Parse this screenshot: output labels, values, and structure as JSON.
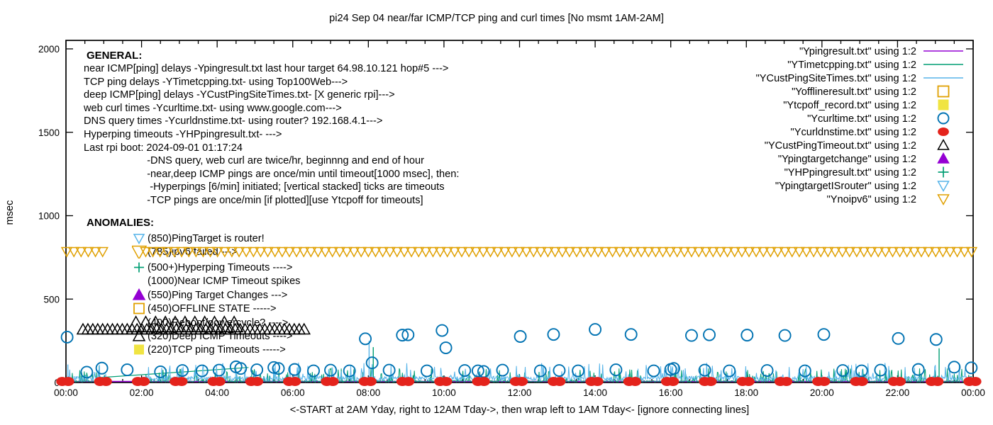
{
  "title": "pi24 Sep 04  near/far ICMP/TCP ping and curl times [No msmt 1AM-2AM]",
  "colors": {
    "purple": "#9400d3",
    "teal": "#009e73",
    "lightblue": "#56b4e9",
    "orange": "#e0a000",
    "yellow": "#f0e442",
    "blue": "#0072b2",
    "red": "#e4231c",
    "black": "#000000"
  },
  "general": {
    "heading": "GENERAL:",
    "lines": [
      "near ICMP[ping] delays -Ypingresult.txt last hour target 64.98.10.121 hop#5 --->",
      "TCP ping delays -YTimetcpping.txt- using Top100Web--->",
      "deep ICMP[ping] delays -YCustPingSiteTimes.txt- [X generic rpi]--->",
      "web curl times -Ycurltime.txt- using www.google.com--->",
      "DNS query times -Ycurldnstime.txt- using router? 192.168.4.1--->",
      "Hyperping timeouts -YHPpingresult.txt- --->",
      "Last rpi boot: 2024-09-01 01:17:24",
      "                      -DNS query, web curl are twice/hr, beginnng and end of hour",
      "                      -near,deep ICMP pings are once/min until timeout[1000 msec], then:",
      "                       -Hyperpings [6/min] initiated; [vertical stacked] ticks are timeouts",
      "                      -TCP pings are once/min [if plotted][use Ytcpoff for timeouts]"
    ]
  },
  "anomalies": {
    "heading": "ANOMALIES:",
    "items": [
      {
        "marker": "tri-down-open",
        "color_key": "lightblue",
        "size": 7,
        "text": "(850)PingTarget is router!"
      },
      {
        "marker": "tri-down-open",
        "color_key": "orange",
        "size": 10,
        "text": "(785)ipv6 failed --->"
      },
      {
        "marker": "plus",
        "color_key": "teal",
        "size": 7,
        "text": "(500+)Hyperping Timeouts ---->"
      },
      {
        "marker": "none",
        "color_key": "black",
        "size": 0,
        "text": "(1000)Near ICMP Timeout spikes"
      },
      {
        "marker": "tri-up-fill",
        "color_key": "purple",
        "size": 8,
        "text": "(550)Ping Target Changes --->"
      },
      {
        "marker": "square-open",
        "color_key": "orange",
        "size": 7,
        "text": "(450)OFFLINE STATE ----->"
      },
      {
        "marker": "none",
        "color_key": "black",
        "size": 0,
        "text": "(400)Reboot/powercycle? ---->"
      },
      {
        "marker": "tri-up-open",
        "color_key": "black",
        "size": 8,
        "text": "(320)Deep ICMP Timeouts ---->"
      },
      {
        "marker": "square-fill",
        "color_key": "yellow",
        "size": 7,
        "text": "(220)TCP ping Timeouts ----->"
      }
    ]
  },
  "legend": [
    {
      "label": "\"Ypingresult.txt\" using 1:2",
      "sample": "line",
      "color_key": "purple"
    },
    {
      "label": "\"YTimetcpping.txt\" using 1:2",
      "sample": "line",
      "color_key": "teal"
    },
    {
      "label": "\"YCustPingSiteTimes.txt\" using 1:2",
      "sample": "line",
      "color_key": "lightblue"
    },
    {
      "label": "\"Yofflineresult.txt\" using 1:2",
      "sample": "square-open",
      "color_key": "orange"
    },
    {
      "label": "\"Ytcpoff_record.txt\" using 1:2",
      "sample": "square-fill",
      "color_key": "yellow"
    },
    {
      "label": "\"Ycurltime.txt\" using 1:2",
      "sample": "circle-open",
      "color_key": "blue"
    },
    {
      "label": "\"Ycurldnstime.txt\" using 1:2",
      "sample": "circle-fill",
      "color_key": "red"
    },
    {
      "label": "\"YCustPingTimeout.txt\" using 1:2",
      "sample": "tri-up-open",
      "color_key": "black"
    },
    {
      "label": "\"Ypingtargetchange\" using 1:2",
      "sample": "tri-up-fill",
      "color_key": "purple"
    },
    {
      "label": "\"YHPpingresult.txt\" using 1:2",
      "sample": "plus",
      "color_key": "teal"
    },
    {
      "label": "\"YpingtargetISrouter\" using 1:2",
      "sample": "tri-down-open",
      "color_key": "lightblue"
    },
    {
      "label": "\"Ynoipv6\" using 1:2",
      "sample": "tri-down-open",
      "color_key": "orange"
    }
  ],
  "chart_data": {
    "type": "mixed time-series (lines + scatter)",
    "title": "pi24 Sep 04  near/far ICMP/TCP ping and curl times [No msmt 1AM-2AM]",
    "xlabel": "<-START at 2AM Yday, right to 12AM Tday->, then wrap left to 1AM Tday<- [ignore connecting lines]",
    "ylabel": "msec",
    "x_axis": {
      "min_hour": 0,
      "max_hour": 24,
      "major_tick_hours": 2,
      "minor_tick_hours": 0.5,
      "labels": [
        "00:00",
        "02:00",
        "04:00",
        "06:00",
        "08:00",
        "10:00",
        "12:00",
        "14:00",
        "16:00",
        "18:00",
        "20:00",
        "22:00",
        "00:00"
      ]
    },
    "y_axis": {
      "min": 0,
      "max": 2000,
      "ticks": [
        0,
        500,
        1000,
        1500,
        2000
      ]
    },
    "no_measurement_gap_hours": [
      1.08,
      1.97
    ],
    "series": [
      {
        "name": "Ypingresult.txt",
        "kind": "flat-line",
        "color_key": "purple",
        "value": 6
      },
      {
        "name": "YTimetcpping.txt",
        "kind": "noise-line",
        "color_key": "teal",
        "seed": 11,
        "base": 2,
        "spread": 10,
        "spike_chance": 0.16,
        "spike_min": 15,
        "spike_max": 85,
        "extra_spikes": [
          [
            0.88,
            100
          ],
          [
            8.13,
            212
          ],
          [
            23.1,
            205
          ]
        ],
        "segments": [
          [
            [
              0.94,
              30
            ],
            [
              4.83,
              90
            ]
          ]
        ]
      },
      {
        "name": "YCustPingSiteTimes.txt",
        "kind": "noise-line",
        "color_key": "lightblue",
        "seed": 5,
        "base": 10,
        "spread": 28,
        "spike_chance": 0.1,
        "spike_min": 40,
        "spike_max": 120,
        "extra_spikes": [
          [
            0.05,
            108
          ],
          [
            8.02,
            250
          ]
        ],
        "segments": []
      },
      {
        "name": "Ycurltime.txt",
        "kind": "points",
        "marker": "circle-open",
        "color_key": "blue",
        "size": 8,
        "points": [
          [
            0.03,
            272
          ],
          [
            0.55,
            62
          ],
          [
            0.95,
            86
          ],
          [
            1.62,
            76
          ],
          [
            2.5,
            64
          ],
          [
            3.08,
            72
          ],
          [
            3.6,
            70
          ],
          [
            4.05,
            74
          ],
          [
            4.5,
            94
          ],
          [
            4.62,
            84
          ],
          [
            5.05,
            76
          ],
          [
            5.5,
            90
          ],
          [
            5.62,
            84
          ],
          [
            6.05,
            78
          ],
          [
            6.55,
            70
          ],
          [
            7.0,
            74
          ],
          [
            7.5,
            70
          ],
          [
            7.92,
            262
          ],
          [
            8.1,
            118
          ],
          [
            8.55,
            74
          ],
          [
            8.9,
            284
          ],
          [
            9.05,
            286
          ],
          [
            9.55,
            70
          ],
          [
            9.95,
            312
          ],
          [
            10.05,
            208
          ],
          [
            10.55,
            72
          ],
          [
            10.9,
            70
          ],
          [
            11.05,
            66
          ],
          [
            11.55,
            74
          ],
          [
            12.02,
            276
          ],
          [
            12.55,
            70
          ],
          [
            12.9,
            288
          ],
          [
            13.05,
            72
          ],
          [
            13.55,
            70
          ],
          [
            14.0,
            318
          ],
          [
            14.55,
            76
          ],
          [
            14.95,
            288
          ],
          [
            15.55,
            70
          ],
          [
            16.0,
            78
          ],
          [
            16.08,
            84
          ],
          [
            16.55,
            282
          ],
          [
            16.9,
            74
          ],
          [
            17.02,
            286
          ],
          [
            17.55,
            70
          ],
          [
            18.02,
            284
          ],
          [
            18.55,
            72
          ],
          [
            19.02,
            282
          ],
          [
            19.55,
            70
          ],
          [
            20.05,
            288
          ],
          [
            20.55,
            72
          ],
          [
            21.05,
            70
          ],
          [
            21.55,
            74
          ],
          [
            22.02,
            264
          ],
          [
            22.55,
            78
          ],
          [
            23.02,
            258
          ],
          [
            23.5,
            92
          ],
          [
            23.95,
            88
          ]
        ]
      },
      {
        "name": "Ycurldnstime.txt",
        "kind": "hourly-pairs",
        "marker": "circle-fill",
        "color_key": "red",
        "value": 6,
        "offsets": [
          -0.1,
          0.06
        ],
        "size": 8
      },
      {
        "name": "YCustPingTimeout.txt",
        "kind": "tri-row",
        "marker": "tri-up-open",
        "color_key": "black",
        "rows": [
          {
            "y": 318,
            "from": 0.45,
            "to": 6.3,
            "step": 0.13,
            "size": 8
          },
          {
            "y": 345,
            "from": 1.85,
            "to": 4.6,
            "step": 0.26,
            "size": 12
          }
        ],
        "respect_gap": false
      },
      {
        "name": "Ynoipv6",
        "kind": "tri-row",
        "marker": "tri-down-open",
        "color_key": "orange",
        "rows": [
          {
            "y": 785,
            "from": 0.02,
            "to": 24,
            "step": 0.19,
            "size": 7
          }
        ],
        "respect_gap": true
      }
    ]
  }
}
